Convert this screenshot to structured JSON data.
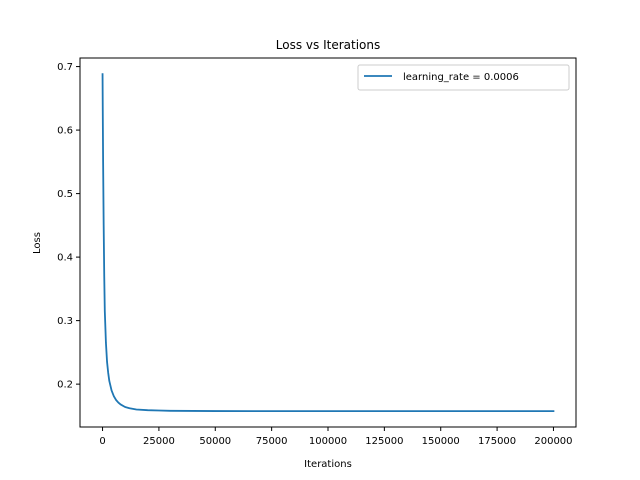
{
  "chart_data": {
    "type": "line",
    "title": "Loss vs Iterations",
    "xlabel": "Iterations",
    "ylabel": "Loss",
    "xlim": [
      -10000,
      210000
    ],
    "ylim": [
      0.1325,
      0.7135
    ],
    "xticks": [
      0,
      25000,
      50000,
      75000,
      100000,
      125000,
      150000,
      175000,
      200000
    ],
    "yticks": [
      0.2,
      0.3,
      0.4,
      0.5,
      0.6,
      0.7
    ],
    "xtick_labels": [
      "0",
      "25000",
      "50000",
      "75000",
      "100000",
      "125000",
      "150000",
      "175000",
      "200000"
    ],
    "ytick_labels": [
      "0.2",
      "0.3",
      "0.4",
      "0.5",
      "0.6",
      "0.7"
    ],
    "grid": false,
    "legend_position": "top-right",
    "colors": {
      "series": "#1f77b4",
      "axes": "#000000",
      "legend_border": "#cccccc"
    },
    "series": [
      {
        "name": "learning_rate = 0.0006",
        "x": [
          0,
          100,
          250,
          500,
          750,
          1000,
          1500,
          2000,
          2500,
          3000,
          4000,
          5000,
          6000,
          7000,
          8000,
          10000,
          12000,
          15000,
          20000,
          25000,
          30000,
          40000,
          50000,
          75000,
          100000,
          125000,
          150000,
          175000,
          200000
        ],
        "y": [
          0.688,
          0.63,
          0.55,
          0.45,
          0.37,
          0.315,
          0.265,
          0.235,
          0.218,
          0.205,
          0.19,
          0.181,
          0.175,
          0.171,
          0.168,
          0.164,
          0.162,
          0.16,
          0.159,
          0.1585,
          0.158,
          0.1578,
          0.1576,
          0.1575,
          0.1575,
          0.1575,
          0.1575,
          0.1575,
          0.1575
        ]
      }
    ]
  }
}
